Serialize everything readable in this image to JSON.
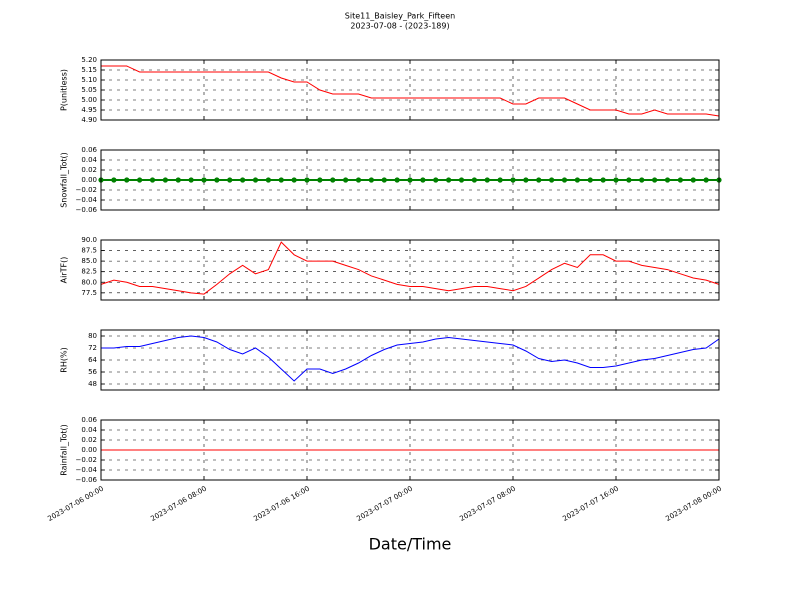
{
  "chart_data": [
    {
      "type": "line",
      "title": "Site11_Baisley_Park_Fifteen",
      "subtitle": "2023-07-08 - (2023-189)",
      "ylabel": "P(unitless)",
      "x": [
        "2023-07-06 00:00",
        "2023-07-06 01:00",
        "2023-07-06 02:00",
        "2023-07-06 03:00",
        "2023-07-06 04:00",
        "2023-07-06 05:00",
        "2023-07-06 06:00",
        "2023-07-06 07:00",
        "2023-07-06 08:00",
        "2023-07-06 09:00",
        "2023-07-06 10:00",
        "2023-07-06 11:00",
        "2023-07-06 12:00",
        "2023-07-06 13:00",
        "2023-07-06 14:00",
        "2023-07-06 15:00",
        "2023-07-06 16:00",
        "2023-07-06 17:00",
        "2023-07-06 18:00",
        "2023-07-06 19:00",
        "2023-07-06 20:00",
        "2023-07-06 21:00",
        "2023-07-06 22:00",
        "2023-07-06 23:00",
        "2023-07-07 00:00",
        "2023-07-07 01:00",
        "2023-07-07 02:00",
        "2023-07-07 03:00",
        "2023-07-07 04:00",
        "2023-07-07 05:00",
        "2023-07-07 06:00",
        "2023-07-07 07:00",
        "2023-07-07 08:00",
        "2023-07-07 09:00",
        "2023-07-07 10:00",
        "2023-07-07 11:00",
        "2023-07-07 12:00",
        "2023-07-07 13:00",
        "2023-07-07 14:00",
        "2023-07-07 15:00",
        "2023-07-07 16:00",
        "2023-07-07 17:00",
        "2023-07-07 18:00",
        "2023-07-07 19:00",
        "2023-07-07 20:00",
        "2023-07-07 21:00",
        "2023-07-07 22:00",
        "2023-07-07 23:00",
        "2023-07-08 00:00"
      ],
      "series": [
        {
          "color": "#ff0000",
          "values": [
            5.17,
            5.17,
            5.17,
            5.14,
            5.14,
            5.14,
            5.14,
            5.14,
            5.14,
            5.14,
            5.14,
            5.14,
            5.14,
            5.14,
            5.11,
            5.09,
            5.09,
            5.05,
            5.03,
            5.03,
            5.03,
            5.01,
            5.01,
            5.01,
            5.01,
            5.01,
            5.01,
            5.01,
            5.01,
            5.01,
            5.01,
            5.01,
            4.98,
            4.98,
            5.01,
            5.01,
            5.01,
            4.98,
            4.95,
            4.95,
            4.95,
            4.93,
            4.93,
            4.95,
            4.93,
            4.93,
            4.93,
            4.93,
            4.92
          ]
        }
      ],
      "xlim": [
        "2023-07-06 00:00",
        "2023-07-08 00:00"
      ],
      "xticks": [
        "2023-07-06 00:00",
        "2023-07-06 08:00",
        "2023-07-06 16:00",
        "2023-07-07 00:00",
        "2023-07-07 08:00",
        "2023-07-07 16:00",
        "2023-07-08 00:00"
      ],
      "xticklabels": false,
      "ylim": [
        4.9,
        5.2
      ],
      "yticks": [
        {
          "value": 4.9,
          "label": "4.90"
        },
        {
          "value": 4.95,
          "label": "4.95"
        },
        {
          "value": 5.0,
          "label": "5.00"
        },
        {
          "value": 5.05,
          "label": "5.05"
        },
        {
          "value": 5.1,
          "label": "5.10"
        },
        {
          "value": 5.15,
          "label": "5.15"
        },
        {
          "value": 5.2,
          "label": "5.20"
        }
      ],
      "grid": true
    },
    {
      "type": "line",
      "ylabel": "Snowfall_Tot()",
      "x": [
        "2023-07-06 00:00",
        "2023-07-06 01:00",
        "2023-07-06 02:00",
        "2023-07-06 03:00",
        "2023-07-06 04:00",
        "2023-07-06 05:00",
        "2023-07-06 06:00",
        "2023-07-06 07:00",
        "2023-07-06 08:00",
        "2023-07-06 09:00",
        "2023-07-06 10:00",
        "2023-07-06 11:00",
        "2023-07-06 12:00",
        "2023-07-06 13:00",
        "2023-07-06 14:00",
        "2023-07-06 15:00",
        "2023-07-06 16:00",
        "2023-07-06 17:00",
        "2023-07-06 18:00",
        "2023-07-06 19:00",
        "2023-07-06 20:00",
        "2023-07-06 21:00",
        "2023-07-06 22:00",
        "2023-07-06 23:00",
        "2023-07-07 00:00",
        "2023-07-07 01:00",
        "2023-07-07 02:00",
        "2023-07-07 03:00",
        "2023-07-07 04:00",
        "2023-07-07 05:00",
        "2023-07-07 06:00",
        "2023-07-07 07:00",
        "2023-07-07 08:00",
        "2023-07-07 09:00",
        "2023-07-07 10:00",
        "2023-07-07 11:00",
        "2023-07-07 12:00",
        "2023-07-07 13:00",
        "2023-07-07 14:00",
        "2023-07-07 15:00",
        "2023-07-07 16:00",
        "2023-07-07 17:00",
        "2023-07-07 18:00",
        "2023-07-07 19:00",
        "2023-07-07 20:00",
        "2023-07-07 21:00",
        "2023-07-07 22:00",
        "2023-07-07 23:00",
        "2023-07-08 00:00"
      ],
      "series": [
        {
          "color": "#008000",
          "marker": "o",
          "values": [
            0,
            0,
            0,
            0,
            0,
            0,
            0,
            0,
            0,
            0,
            0,
            0,
            0,
            0,
            0,
            0,
            0,
            0,
            0,
            0,
            0,
            0,
            0,
            0,
            0,
            0,
            0,
            0,
            0,
            0,
            0,
            0,
            0,
            0,
            0,
            0,
            0,
            0,
            0,
            0,
            0,
            0,
            0,
            0,
            0,
            0,
            0,
            0,
            0
          ]
        }
      ],
      "xlim": [
        "2023-07-06 00:00",
        "2023-07-08 00:00"
      ],
      "xticks": [
        "2023-07-06 00:00",
        "2023-07-06 08:00",
        "2023-07-06 16:00",
        "2023-07-07 00:00",
        "2023-07-07 08:00",
        "2023-07-07 16:00",
        "2023-07-08 00:00"
      ],
      "xticklabels": false,
      "ylim": [
        -0.06,
        0.06
      ],
      "yticks": [
        {
          "value": -0.06,
          "label": "−0.06"
        },
        {
          "value": -0.04,
          "label": "−0.04"
        },
        {
          "value": -0.02,
          "label": "−0.02"
        },
        {
          "value": 0,
          "label": "0.00"
        },
        {
          "value": 0.02,
          "label": "0.02"
        },
        {
          "value": 0.04,
          "label": "0.04"
        },
        {
          "value": 0.06,
          "label": "0.06"
        }
      ],
      "grid": true
    },
    {
      "type": "line",
      "ylabel": "AirTF()",
      "x": [
        "2023-07-06 00:00",
        "2023-07-06 01:00",
        "2023-07-06 02:00",
        "2023-07-06 03:00",
        "2023-07-06 04:00",
        "2023-07-06 05:00",
        "2023-07-06 06:00",
        "2023-07-06 07:00",
        "2023-07-06 08:00",
        "2023-07-06 09:00",
        "2023-07-06 10:00",
        "2023-07-06 11:00",
        "2023-07-06 12:00",
        "2023-07-06 13:00",
        "2023-07-06 14:00",
        "2023-07-06 15:00",
        "2023-07-06 16:00",
        "2023-07-06 17:00",
        "2023-07-06 18:00",
        "2023-07-06 19:00",
        "2023-07-06 20:00",
        "2023-07-06 21:00",
        "2023-07-06 22:00",
        "2023-07-06 23:00",
        "2023-07-07 00:00",
        "2023-07-07 01:00",
        "2023-07-07 02:00",
        "2023-07-07 03:00",
        "2023-07-07 04:00",
        "2023-07-07 05:00",
        "2023-07-07 06:00",
        "2023-07-07 07:00",
        "2023-07-07 08:00",
        "2023-07-07 09:00",
        "2023-07-07 10:00",
        "2023-07-07 11:00",
        "2023-07-07 12:00",
        "2023-07-07 13:00",
        "2023-07-07 14:00",
        "2023-07-07 15:00",
        "2023-07-07 16:00",
        "2023-07-07 17:00",
        "2023-07-07 18:00",
        "2023-07-07 19:00",
        "2023-07-07 20:00",
        "2023-07-07 21:00",
        "2023-07-07 22:00",
        "2023-07-07 23:00",
        "2023-07-08 00:00"
      ],
      "series": [
        {
          "color": "#ff0000",
          "values": [
            79.5,
            80.5,
            80,
            79,
            79,
            78.5,
            78,
            77.5,
            77.2,
            79.5,
            82,
            84,
            82,
            83,
            89.5,
            86.5,
            85,
            85,
            85,
            84,
            83,
            81.5,
            80.5,
            79.5,
            79,
            79,
            78.5,
            78,
            78.5,
            79,
            79,
            78.5,
            78,
            79,
            81,
            83,
            84.5,
            83.5,
            86.5,
            86.5,
            85,
            85,
            84,
            83.5,
            83,
            82,
            81,
            80.5,
            79.5
          ]
        }
      ],
      "xlim": [
        "2023-07-06 00:00",
        "2023-07-08 00:00"
      ],
      "xticks": [
        "2023-07-06 00:00",
        "2023-07-06 08:00",
        "2023-07-06 16:00",
        "2023-07-07 00:00",
        "2023-07-07 08:00",
        "2023-07-07 16:00",
        "2023-07-08 00:00"
      ],
      "xticklabels": false,
      "ylim": [
        75.8,
        90
      ],
      "yticks": [
        77.5,
        {
          "value": 80,
          "label": "80.0"
        },
        82.5,
        {
          "value": 85,
          "label": "85.0"
        },
        87.5,
        {
          "value": 90,
          "label": "90.0"
        }
      ],
      "grid": true
    },
    {
      "type": "line",
      "ylabel": "RH(%)",
      "x": [
        "2023-07-06 00:00",
        "2023-07-06 01:00",
        "2023-07-06 02:00",
        "2023-07-06 03:00",
        "2023-07-06 04:00",
        "2023-07-06 05:00",
        "2023-07-06 06:00",
        "2023-07-06 07:00",
        "2023-07-06 08:00",
        "2023-07-06 09:00",
        "2023-07-06 10:00",
        "2023-07-06 11:00",
        "2023-07-06 12:00",
        "2023-07-06 13:00",
        "2023-07-06 14:00",
        "2023-07-06 15:00",
        "2023-07-06 16:00",
        "2023-07-06 17:00",
        "2023-07-06 18:00",
        "2023-07-06 19:00",
        "2023-07-06 20:00",
        "2023-07-06 21:00",
        "2023-07-06 22:00",
        "2023-07-06 23:00",
        "2023-07-07 00:00",
        "2023-07-07 01:00",
        "2023-07-07 02:00",
        "2023-07-07 03:00",
        "2023-07-07 04:00",
        "2023-07-07 05:00",
        "2023-07-07 06:00",
        "2023-07-07 07:00",
        "2023-07-07 08:00",
        "2023-07-07 09:00",
        "2023-07-07 10:00",
        "2023-07-07 11:00",
        "2023-07-07 12:00",
        "2023-07-07 13:00",
        "2023-07-07 14:00",
        "2023-07-07 15:00",
        "2023-07-07 16:00",
        "2023-07-07 17:00",
        "2023-07-07 18:00",
        "2023-07-07 19:00",
        "2023-07-07 20:00",
        "2023-07-07 21:00",
        "2023-07-07 22:00",
        "2023-07-07 23:00",
        "2023-07-08 00:00"
      ],
      "series": [
        {
          "color": "#0000ff",
          "values": [
            72,
            72,
            73,
            73,
            75,
            77,
            79,
            80,
            79,
            76,
            71,
            68,
            72,
            66,
            58,
            50,
            58,
            58,
            55,
            58,
            62,
            67,
            71,
            74,
            75,
            76,
            78,
            79,
            78,
            77,
            76,
            75,
            74,
            70,
            65,
            63,
            64,
            62,
            59,
            59,
            60,
            62,
            64,
            65,
            67,
            69,
            71,
            72,
            78
          ]
        }
      ],
      "xlim": [
        "2023-07-06 00:00",
        "2023-07-08 00:00"
      ],
      "xticks": [
        "2023-07-06 00:00",
        "2023-07-06 08:00",
        "2023-07-06 16:00",
        "2023-07-07 00:00",
        "2023-07-07 08:00",
        "2023-07-07 16:00",
        "2023-07-08 00:00"
      ],
      "xticklabels": false,
      "ylim": [
        44,
        84
      ],
      "yticks": [
        48,
        56,
        64,
        72,
        80
      ],
      "grid": true
    },
    {
      "type": "line",
      "ylabel": "Rainfall_Tot()",
      "xlabel": "Date/Time",
      "x": [
        "2023-07-06 00:00",
        "2023-07-06 01:00",
        "2023-07-06 02:00",
        "2023-07-06 03:00",
        "2023-07-06 04:00",
        "2023-07-06 05:00",
        "2023-07-06 06:00",
        "2023-07-06 07:00",
        "2023-07-06 08:00",
        "2023-07-06 09:00",
        "2023-07-06 10:00",
        "2023-07-06 11:00",
        "2023-07-06 12:00",
        "2023-07-06 13:00",
        "2023-07-06 14:00",
        "2023-07-06 15:00",
        "2023-07-06 16:00",
        "2023-07-06 17:00",
        "2023-07-06 18:00",
        "2023-07-06 19:00",
        "2023-07-06 20:00",
        "2023-07-06 21:00",
        "2023-07-06 22:00",
        "2023-07-06 23:00",
        "2023-07-07 00:00",
        "2023-07-07 01:00",
        "2023-07-07 02:00",
        "2023-07-07 03:00",
        "2023-07-07 04:00",
        "2023-07-07 05:00",
        "2023-07-07 06:00",
        "2023-07-07 07:00",
        "2023-07-07 08:00",
        "2023-07-07 09:00",
        "2023-07-07 10:00",
        "2023-07-07 11:00",
        "2023-07-07 12:00",
        "2023-07-07 13:00",
        "2023-07-07 14:00",
        "2023-07-07 15:00",
        "2023-07-07 16:00",
        "2023-07-07 17:00",
        "2023-07-07 18:00",
        "2023-07-07 19:00",
        "2023-07-07 20:00",
        "2023-07-07 21:00",
        "2023-07-07 22:00",
        "2023-07-07 23:00",
        "2023-07-08 00:00"
      ],
      "series": [
        {
          "color": "#ff0000",
          "values": [
            0,
            0,
            0,
            0,
            0,
            0,
            0,
            0,
            0,
            0,
            0,
            0,
            0,
            0,
            0,
            0,
            0,
            0,
            0,
            0,
            0,
            0,
            0,
            0,
            0,
            0,
            0,
            0,
            0,
            0,
            0,
            0,
            0,
            0,
            0,
            0,
            0,
            0,
            0,
            0,
            0,
            0,
            0,
            0,
            0,
            0,
            0,
            0,
            0
          ]
        }
      ],
      "xlim": [
        "2023-07-06 00:00",
        "2023-07-08 00:00"
      ],
      "xticks": [
        "2023-07-06 00:00",
        "2023-07-06 08:00",
        "2023-07-06 16:00",
        "2023-07-07 00:00",
        "2023-07-07 08:00",
        "2023-07-07 16:00",
        "2023-07-08 00:00"
      ],
      "xticklabels": true,
      "ylim": [
        -0.06,
        0.06
      ],
      "yticks": [
        {
          "value": -0.06,
          "label": "−0.06"
        },
        {
          "value": -0.04,
          "label": "−0.04"
        },
        {
          "value": -0.02,
          "label": "−0.02"
        },
        {
          "value": 0,
          "label": "0.00"
        },
        {
          "value": 0.02,
          "label": "0.02"
        },
        {
          "value": 0.04,
          "label": "0.04"
        },
        {
          "value": 0.06,
          "label": "0.06"
        }
      ],
      "grid": true
    }
  ]
}
